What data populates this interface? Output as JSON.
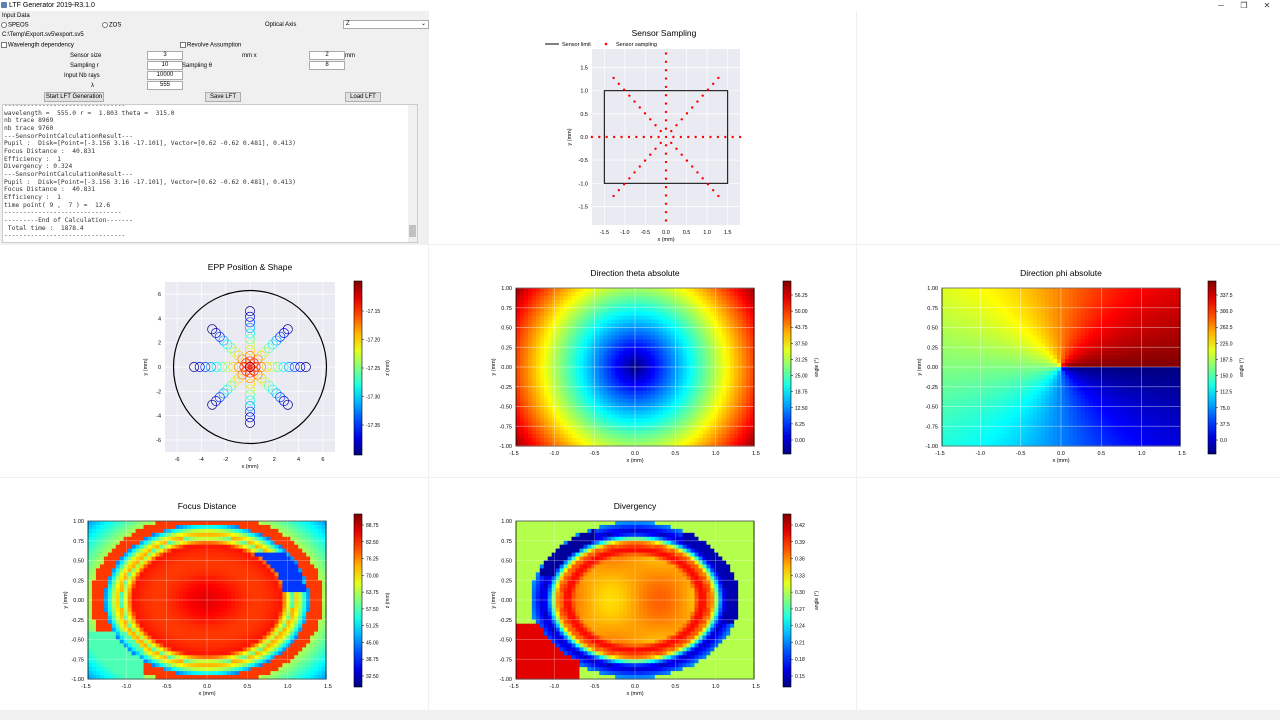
{
  "window": {
    "title": "LTF Generator 2019-R3.1.0",
    "minimize": "─",
    "maximize": "❐",
    "close": "✕"
  },
  "input": {
    "header": "Input Data",
    "speos_label": "SPEOS",
    "zos_label": "ZOS",
    "optical_axis_label": "Optical Axis",
    "optical_axis_value": "Z",
    "file_path": "C:\\Temp\\Export.sv5\\export.sv5",
    "wavelength_dep_label": "Wavelength dependency",
    "revolve_label": "Revolve Assumption",
    "sensor_size_label": "Sensor size",
    "sensor_size_x": "3",
    "mm_x_label": "mm   x",
    "sensor_size_y": "2",
    "mm_label": "mm",
    "sampling_r_label": "Sampling r",
    "sampling_r_value": "10",
    "sampling_theta_label": "Sampling θ",
    "sampling_theta_value": "8",
    "input_rays_label": "Input Nb rays",
    "input_rays_value": "10000",
    "lambda_label": "λ",
    "lambda_value": "555",
    "start_button": "Start LFT Generation",
    "save_button": "Save LFT",
    "load_button": "Load LFT"
  },
  "console_lines": [
    "--------------------------------",
    "wavelength =  555.0 r =  1.803 theta =  315.0",
    "nb trace 8969",
    "nb trace 9760",
    "---SensorPointCalculationResult---",
    "Pupil :  Disk=[Point=[-3.156 3.16 -17.101], Vector=[0.62 -0.62 0.481], 0.413)",
    "Focus Distance :  40.831",
    "Efficiency :  1",
    "Divergency : 0.324",
    "---SensorPointCalculationResult---",
    "Pupil :  Disk=[Point=[-3.156 3.16 -17.101], Vector=[0.62 -0.62 0.481], 0.413)",
    "Focus Distance :  40.831",
    "Efficiency :  1",
    "time point( 9 ,  7 ) =  12.6",
    "-------------------------------",
    "---------End of Calculation-------",
    " Total time :  1878.4",
    "--------------------------------"
  ],
  "colors": {
    "red": "#ff0000",
    "plot_bg": "#eaeaf2",
    "grid": "#ffffff"
  },
  "chart_data": [
    {
      "type": "scatter",
      "title": "Sensor Sampling",
      "xlabel": "x (mm)",
      "ylabel": "y (mm)",
      "xlim": [
        -1.8,
        1.8
      ],
      "ylim": [
        -1.9,
        1.9
      ],
      "xticks": [
        "-1.5",
        "-1.0",
        "-0.5",
        "0.0",
        "0.5",
        "1.0",
        "1.5"
      ],
      "yticks": [
        "1.5",
        "1.0",
        "0.5",
        "0.0",
        "-0.5",
        "-1.0",
        "-1.5"
      ],
      "legend": [
        "Sensor limit",
        "Sensor sampling"
      ],
      "legend_position": "top",
      "sensor_limit": {
        "x": [
          -1.5,
          1.5
        ],
        "y": [
          -1.0,
          1.0
        ]
      },
      "sampling": {
        "rings": 10,
        "angles": 8,
        "rmax": 1.803
      }
    },
    {
      "type": "scatter",
      "title": "EPP Position & Shape",
      "xlabel": "x (mm)",
      "ylabel": "y (mm)",
      "xlim": [
        -7,
        7
      ],
      "ylim": [
        -7,
        7
      ],
      "xticks": [
        "-6",
        "-4",
        "-2",
        "0",
        "2",
        "4",
        "6"
      ],
      "yticks": [
        "6",
        "4",
        "2",
        "0",
        "-2",
        "-4",
        "-6"
      ],
      "colorbar_label": "z (mm)",
      "colorbar_ticks": [
        "-17.15",
        "-17.20",
        "-17.25",
        "-17.30",
        "-17.35"
      ],
      "boundary_radius": 6.3
    },
    {
      "type": "heatmap",
      "title": "Direction theta absolute",
      "xlabel": "x (mm)",
      "ylabel": "y (mm)",
      "xticks": [
        "-1.5",
        "-1.0",
        "-0.5",
        "0.0",
        "0.5",
        "1.0",
        "1.5"
      ],
      "yticks": [
        "1.00",
        "0.75",
        "0.50",
        "0.25",
        "0.00",
        "-0.25",
        "-0.50",
        "-0.75",
        "-1.00"
      ],
      "colorbar_label": "angle (°)",
      "colorbar_ticks": [
        "56.25",
        "50.00",
        "43.75",
        "37.50",
        "31.25",
        "25.00",
        "18.75",
        "12.50",
        "6.25",
        "0.00"
      ]
    },
    {
      "type": "heatmap",
      "title": "Direction phi absolute",
      "xlabel": "x (mm)",
      "ylabel": "y (mm)",
      "xticks": [
        "-1.5",
        "-1.0",
        "-0.5",
        "0.0",
        "0.5",
        "1.0",
        "1.5"
      ],
      "yticks": [
        "1.00",
        "0.75",
        "0.50",
        "0.25",
        "0.00",
        "-0.25",
        "-0.50",
        "-0.75",
        "-1.00"
      ],
      "colorbar_label": "angle (°)",
      "colorbar_ticks": [
        "337.5",
        "300.0",
        "262.5",
        "225.0",
        "187.5",
        "150.0",
        "112.5",
        "75.0",
        "37.5",
        "0.0"
      ]
    },
    {
      "type": "heatmap",
      "title": "Focus Distance",
      "xlabel": "x (mm)",
      "ylabel": "y (mm)",
      "xticks": [
        "-1.5",
        "-1.0",
        "-0.5",
        "0.0",
        "0.5",
        "1.0",
        "1.5"
      ],
      "yticks": [
        "1.00",
        "0.75",
        "0.50",
        "0.25",
        "0.00",
        "-0.25",
        "-0.50",
        "-0.75",
        "-1.00"
      ],
      "colorbar_label": "z (mm)",
      "colorbar_ticks": [
        "88.75",
        "82.50",
        "76.25",
        "70.00",
        "63.75",
        "57.50",
        "51.25",
        "45.00",
        "38.75",
        "32.50"
      ]
    },
    {
      "type": "heatmap",
      "title": "Divergency",
      "xlabel": "x (mm)",
      "ylabel": "y (mm)",
      "xticks": [
        "-1.5",
        "-1.0",
        "-0.5",
        "0.0",
        "0.5",
        "1.0",
        "1.5"
      ],
      "yticks": [
        "1.00",
        "0.75",
        "0.50",
        "0.25",
        "0.00",
        "-0.25",
        "-0.50",
        "-0.75",
        "-1.00"
      ],
      "colorbar_label": "angle (°)",
      "colorbar_ticks": [
        "0.42",
        "0.39",
        "0.36",
        "0.33",
        "0.30",
        "0.27",
        "0.24",
        "0.21",
        "0.18",
        "0.15"
      ]
    }
  ]
}
